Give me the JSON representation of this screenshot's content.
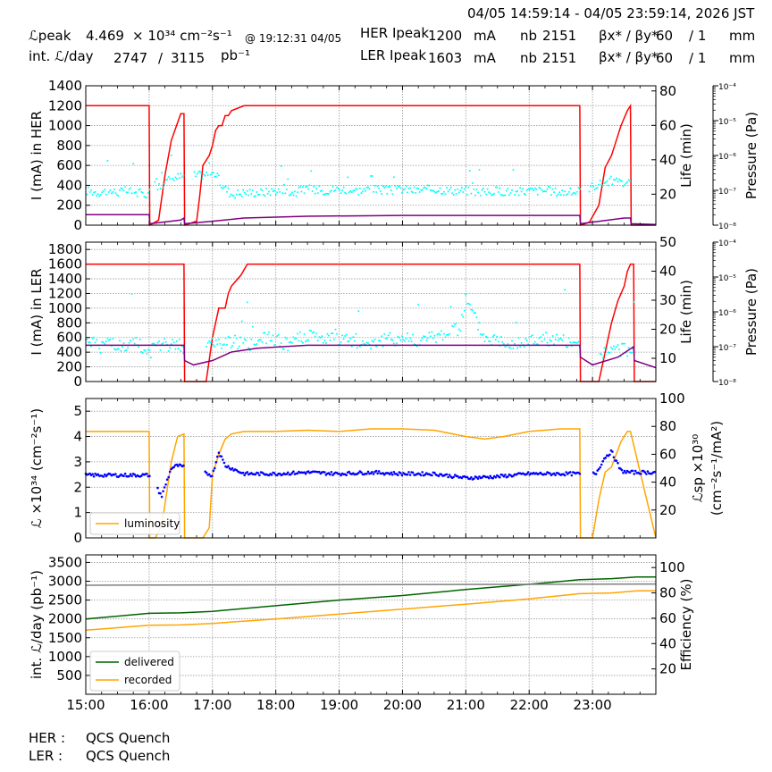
{
  "header": {
    "time_range": "04/05 14:59:14 - 04/05 23:59:14, 2026 JST",
    "row1": {
      "lum_label": "ℒpeak",
      "lum_value": "4.469",
      "lum_unit": "× 10³⁴ cm⁻²s⁻¹",
      "lum_time": "@ 19:12:31 04/05",
      "her_label": "HER Ipeak",
      "her_value": "1200",
      "her_unit": "mA",
      "nb_label": "nb",
      "nb_value": "2151",
      "beta_label": "βx* / βy*",
      "beta_x": "60",
      "beta_y": "/ 1",
      "beta_unit": "mm"
    },
    "row2": {
      "int_label": "int. ℒ/day",
      "int_value1": "2747",
      "int_sep": "/",
      "int_value2": "3115",
      "int_unit": "pb⁻¹",
      "ler_label": "LER Ipeak",
      "ler_value": "1603",
      "ler_unit": "mA",
      "nb_label": "nb",
      "nb_value": "2151",
      "beta_label": "βx* / βy*",
      "beta_x": "60",
      "beta_y": "/ 1",
      "beta_unit": "mm"
    }
  },
  "footer": [
    {
      "ring": "HER :",
      "status": "QCS Quench"
    },
    {
      "ring": "LER :",
      "status": "QCS Quench"
    }
  ],
  "chart_data": [
    {
      "type": "line",
      "title": "",
      "ylabel": "I (mA) in HER",
      "ylim": [
        0,
        1400
      ],
      "yticks": [
        0,
        200,
        400,
        600,
        800,
        1000,
        1200,
        1400
      ],
      "y2label": "Life (min)",
      "y2lim": [
        2,
        83
      ],
      "y2ticks": [
        20,
        40,
        60,
        80
      ],
      "y3label": "Pressure (Pa)",
      "y3scale": "log",
      "y3ticks": [
        "10⁻⁸",
        "10⁻⁷",
        "10⁻⁶",
        "10⁻⁵",
        "10⁻⁴"
      ],
      "xlim": [
        15.0,
        24.0
      ],
      "grid": true,
      "colors": {
        "current": "#ff0000",
        "lifetime": "#00ffff",
        "pressure": "#800080"
      },
      "series": [
        {
          "role": "current",
          "axis": "left",
          "style": "line",
          "x": [
            15.0,
            16.0,
            16.01,
            16.15,
            16.25,
            16.35,
            16.5,
            16.55,
            16.56,
            16.75,
            16.8,
            16.85,
            16.95,
            17.0,
            17.05,
            17.1,
            17.15,
            17.2,
            17.25,
            17.3,
            17.5,
            17.6,
            17.7,
            22.8,
            22.81,
            22.95,
            23.1,
            23.2,
            23.3,
            23.4,
            23.45,
            23.55,
            23.6,
            23.61,
            24.0
          ],
          "y": [
            1200,
            1200,
            0,
            50,
            500,
            850,
            1120,
            1120,
            0,
            40,
            300,
            600,
            700,
            800,
            950,
            1000,
            1000,
            1100,
            1100,
            1150,
            1200,
            1200,
            1200,
            1200,
            0,
            30,
            200,
            580,
            700,
            900,
            1000,
            1150,
            1200,
            0,
            0
          ]
        },
        {
          "role": "lifetime",
          "axis": "right",
          "style": "scatter",
          "unit": "min",
          "x": [
            15.05,
            15.2,
            15.35,
            15.5,
            15.65,
            15.8,
            15.95,
            16.3,
            16.45,
            17.05,
            17.15,
            17.3,
            17.5,
            17.8,
            18.0,
            18.3,
            18.5,
            18.7,
            19.0,
            19.3,
            19.5,
            19.8,
            20.0,
            20.2,
            20.5,
            20.8,
            21.0,
            21.3,
            21.5,
            21.8,
            22.0,
            22.3,
            22.5,
            22.7,
            23.3,
            23.5
          ],
          "y": [
            22,
            21,
            22,
            21,
            22,
            21,
            20,
            28,
            30,
            32,
            25,
            20,
            21,
            21,
            22,
            21,
            23,
            22,
            23,
            22,
            23,
            22,
            23,
            22,
            23,
            22,
            22,
            21,
            22,
            21,
            22,
            22,
            21,
            21,
            28,
            26
          ]
        },
        {
          "role": "pressure",
          "axis": "log",
          "style": "line",
          "unit": "Pa",
          "x": [
            15.0,
            16.0,
            16.01,
            16.5,
            16.55,
            16.56,
            17.0,
            17.5,
            18.5,
            20.0,
            22.8,
            22.81,
            23.5,
            23.6,
            23.61,
            24.0
          ],
          "y": [
            2e-08,
            2e-08,
            1.1e-08,
            1.4e-08,
            1.6e-08,
            1.1e-08,
            1.3e-08,
            1.6e-08,
            1.8e-08,
            1.9e-08,
            1.9e-08,
            1.1e-08,
            1.6e-08,
            1.6e-08,
            1.1e-08,
            1.05e-08
          ]
        }
      ]
    },
    {
      "type": "line",
      "title": "",
      "ylabel": "I (mA) in LER",
      "ylim": [
        0,
        1900
      ],
      "yticks": [
        0,
        200,
        400,
        600,
        800,
        1000,
        1200,
        1400,
        1600,
        1800
      ],
      "y2label": "Life (min)",
      "y2lim": [
        2,
        50
      ],
      "y2ticks": [
        10,
        20,
        30,
        40,
        50
      ],
      "y3label": "Pressure (Pa)",
      "y3scale": "log",
      "y3ticks": [
        "10⁻⁸",
        "10⁻⁷",
        "10⁻⁶",
        "10⁻⁵",
        "10⁻⁴"
      ],
      "xlim": [
        15.0,
        24.0
      ],
      "grid": true,
      "colors": {
        "current": "#ff0000",
        "lifetime": "#00ffff",
        "pressure": "#800080"
      },
      "series": [
        {
          "role": "current",
          "axis": "left",
          "style": "line",
          "x": [
            15.0,
            16.55,
            16.56,
            16.9,
            17.0,
            17.05,
            17.1,
            17.2,
            17.25,
            17.3,
            17.45,
            17.55,
            17.7,
            22.8,
            22.81,
            23.1,
            23.3,
            23.4,
            23.5,
            23.55,
            23.6,
            23.65,
            23.66,
            24.0
          ],
          "y": [
            1600,
            1600,
            0,
            0,
            600,
            800,
            1000,
            1000,
            1200,
            1300,
            1450,
            1600,
            1600,
            1600,
            0,
            0,
            800,
            1100,
            1300,
            1500,
            1600,
            1600,
            0,
            0
          ]
        },
        {
          "role": "lifetime",
          "axis": "right",
          "style": "scatter",
          "unit": "min",
          "x": [
            15.05,
            15.2,
            15.4,
            15.6,
            15.8,
            16.0,
            16.3,
            16.5,
            17.0,
            17.3,
            17.6,
            17.9,
            18.2,
            18.5,
            18.8,
            19.1,
            19.4,
            19.7,
            20.0,
            20.3,
            20.6,
            20.9,
            21.0,
            21.3,
            21.6,
            21.9,
            22.2,
            22.5,
            22.7,
            23.2,
            23.5
          ],
          "y": [
            17,
            14,
            16,
            13,
            15,
            12,
            15,
            14,
            15,
            16,
            15,
            17,
            15,
            18,
            16,
            17,
            15,
            16,
            17,
            16,
            18,
            20,
            30,
            17,
            16,
            15,
            17,
            16,
            14,
            12,
            13
          ]
        },
        {
          "role": "pressure",
          "axis": "log",
          "style": "line",
          "unit": "Pa",
          "x": [
            15.0,
            16.55,
            16.56,
            16.7,
            17.0,
            17.3,
            17.7,
            18.5,
            22.8,
            22.81,
            23.0,
            23.4,
            23.65,
            23.66,
            24.0
          ],
          "y": [
            1.1e-07,
            1.1e-07,
            4e-08,
            3e-08,
            4e-08,
            7e-08,
            9e-08,
            1.1e-07,
            1.1e-07,
            5e-08,
            3e-08,
            5e-08,
            1e-07,
            4e-08,
            2.5e-08
          ]
        }
      ]
    },
    {
      "type": "line",
      "title": "",
      "ylabel": "ℒ ×10³⁴ (cm⁻²s⁻¹)",
      "ylim": [
        0,
        5.5
      ],
      "yticks": [
        0,
        1,
        2,
        3,
        4,
        5
      ],
      "y2label_line1": "ℒsp ×10³⁰",
      "y2label_line2": "(cm⁻²s⁻¹/mA²)",
      "y2lim": [
        0,
        100
      ],
      "y2ticks": [
        20,
        40,
        60,
        80,
        100
      ],
      "xlim": [
        15.0,
        24.0
      ],
      "grid": true,
      "legend": "lower-left",
      "colors": {
        "luminosity": "#ffa500",
        "specific": "#0000ff"
      },
      "series": [
        {
          "name": "luminosity",
          "role": "luminosity",
          "axis": "left",
          "style": "line",
          "x": [
            15.0,
            15.5,
            16.0,
            16.01,
            16.1,
            16.2,
            16.35,
            16.45,
            16.55,
            16.56,
            16.85,
            16.95,
            17.0,
            17.1,
            17.2,
            17.3,
            17.5,
            18.0,
            18.5,
            19.0,
            19.5,
            20.0,
            20.5,
            21.0,
            21.3,
            21.6,
            22.0,
            22.5,
            22.8,
            22.81,
            23.0,
            23.1,
            23.2,
            23.3,
            23.45,
            23.55,
            23.6,
            24.0
          ],
          "y": [
            4.2,
            4.2,
            4.2,
            0,
            0,
            0.5,
            3.0,
            4.0,
            4.1,
            0,
            0,
            0.4,
            2.5,
            3.3,
            3.9,
            4.1,
            4.2,
            4.2,
            4.25,
            4.2,
            4.3,
            4.3,
            4.25,
            4.0,
            3.9,
            4.0,
            4.2,
            4.3,
            4.3,
            0,
            0,
            1.5,
            2.6,
            2.8,
            3.8,
            4.2,
            4.2,
            0
          ]
        },
        {
          "role": "specific",
          "axis": "right",
          "style": "scatter",
          "x": [
            15.0,
            15.5,
            16.0,
            16.2,
            16.35,
            16.45,
            17.0,
            17.1,
            17.2,
            17.5,
            18.0,
            18.5,
            19.0,
            19.5,
            20.0,
            20.5,
            21.0,
            21.5,
            22.0,
            22.5,
            22.8,
            23.05,
            23.2,
            23.3,
            23.45,
            23.6
          ],
          "y": [
            45,
            45,
            45,
            30,
            50,
            52,
            45,
            62,
            52,
            46,
            46,
            47,
            46,
            47,
            46,
            46,
            43,
            44,
            46,
            46,
            46,
            46,
            58,
            62,
            48,
            47
          ]
        }
      ]
    },
    {
      "type": "line",
      "title": "",
      "ylabel": "int. ℒ/day (pb⁻¹)",
      "ylim": [
        0,
        3700
      ],
      "yticks": [
        500,
        1000,
        1500,
        2000,
        2500,
        3000,
        3500
      ],
      "y2label": "Efficiency (%)",
      "y2lim": [
        0,
        110
      ],
      "y2ticks": [
        20,
        40,
        60,
        80,
        100
      ],
      "xlim": [
        15.0,
        24.0
      ],
      "xticks": [
        "15:00",
        "16:00",
        "17:00",
        "18:00",
        "19:00",
        "20:00",
        "21:00",
        "22:00",
        "23:00"
      ],
      "grid": true,
      "legend": "lower-left",
      "colors": {
        "delivered": "#006400",
        "recorded": "#ffa500",
        "efficiency": "#808080"
      },
      "series": [
        {
          "name": "delivered",
          "axis": "left",
          "style": "line",
          "x": [
            15.0,
            16.0,
            16.5,
            17.0,
            18.0,
            19.0,
            20.0,
            21.0,
            22.0,
            22.8,
            23.3,
            23.7,
            24.0
          ],
          "y": [
            2000,
            2150,
            2160,
            2200,
            2350,
            2500,
            2620,
            2780,
            2920,
            3040,
            3070,
            3115,
            3115
          ]
        },
        {
          "name": "recorded",
          "axis": "left",
          "style": "line",
          "x": [
            15.0,
            16.0,
            16.5,
            17.0,
            18.0,
            19.0,
            20.0,
            21.0,
            22.0,
            22.8,
            23.3,
            23.7,
            24.0
          ],
          "y": [
            1700,
            1830,
            1840,
            1880,
            2000,
            2130,
            2260,
            2390,
            2530,
            2670,
            2690,
            2747,
            2747
          ]
        },
        {
          "role": "efficiency",
          "axis": "right",
          "style": "line",
          "x": [
            15.0,
            24.0
          ],
          "y": [
            86,
            87
          ]
        }
      ]
    }
  ]
}
